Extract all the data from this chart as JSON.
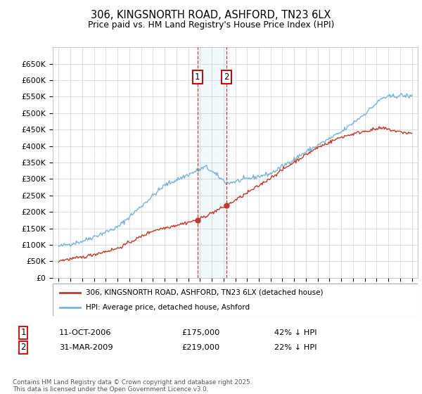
{
  "title": "306, KINGSNORTH ROAD, ASHFORD, TN23 6LX",
  "subtitle": "Price paid vs. HM Land Registry's House Price Index (HPI)",
  "legend_line1": "306, KINGSNORTH ROAD, ASHFORD, TN23 6LX (detached house)",
  "legend_line2": "HPI: Average price, detached house, Ashford",
  "red_color": "#c0392b",
  "blue_color": "#7ab4d4",
  "marker1_date_x": 2006.78,
  "marker2_date_x": 2009.25,
  "marker1_price": 175000,
  "marker2_price": 219000,
  "marker1_text": "11-OCT-2006",
  "marker1_amount": "£175,000",
  "marker1_hpi": "42% ↓ HPI",
  "marker2_text": "31-MAR-2009",
  "marker2_amount": "£219,000",
  "marker2_hpi": "22% ↓ HPI",
  "footer": "Contains HM Land Registry data © Crown copyright and database right 2025.\nThis data is licensed under the Open Government Licence v3.0.",
  "ylim": [
    0,
    700000
  ],
  "yticks": [
    0,
    50000,
    100000,
    150000,
    200000,
    250000,
    300000,
    350000,
    400000,
    450000,
    500000,
    550000,
    600000,
    650000
  ],
  "xlim_left": 1994.5,
  "xlim_right": 2025.5
}
